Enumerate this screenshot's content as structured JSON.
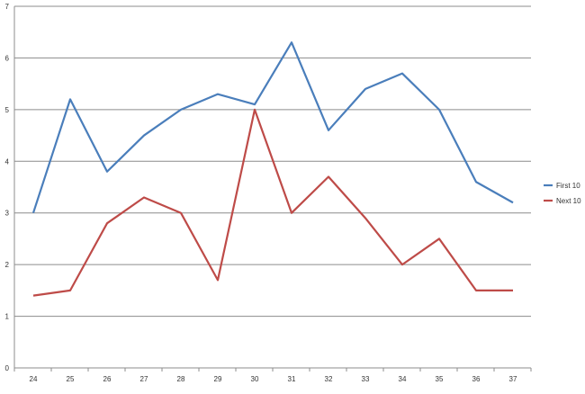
{
  "chart_data": {
    "type": "line",
    "categories": [
      "24",
      "25",
      "26",
      "27",
      "28",
      "29",
      "30",
      "31",
      "32",
      "33",
      "34",
      "35",
      "36",
      "37"
    ],
    "series": [
      {
        "name": "First 10",
        "color": "#4A7EBB",
        "values": [
          3.0,
          5.2,
          3.8,
          4.5,
          5.0,
          5.3,
          5.1,
          6.3,
          4.6,
          5.4,
          5.7,
          5.0,
          3.6,
          3.2
        ]
      },
      {
        "name": "Next 10",
        "color": "#BE4B48",
        "values": [
          1.4,
          1.5,
          2.8,
          3.3,
          3.0,
          1.7,
          5.0,
          3.0,
          3.7,
          2.9,
          2.0,
          2.5,
          1.5,
          1.5
        ]
      }
    ],
    "y_ticks": [
      "0",
      "1",
      "2",
      "3",
      "4",
      "5",
      "6",
      "7"
    ],
    "ylim": [
      0,
      7
    ],
    "grid": true,
    "legend_position": "right"
  }
}
